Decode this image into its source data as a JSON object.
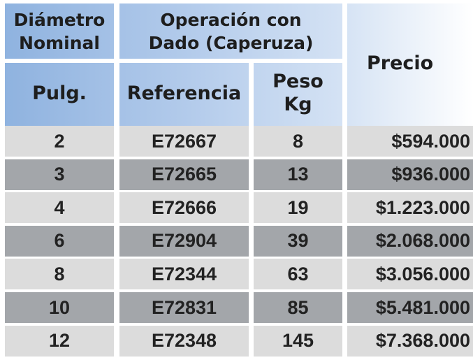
{
  "header": {
    "diametro": "Diámetro Nominal",
    "operacion": "Operación con Dado (Caperuza)",
    "precio": "Precio",
    "pulg": "Pulg.",
    "referencia": "Referencia",
    "peso": "Peso Kg"
  },
  "colors": {
    "header_blue": "#8eb2df",
    "row_light": "#dcdcdc",
    "row_dark": "#a3a6aa"
  },
  "rows": [
    {
      "pulg": "2",
      "referencia": "E72667",
      "peso": "8",
      "precio": "$594.000"
    },
    {
      "pulg": "3",
      "referencia": "E72665",
      "peso": "13",
      "precio": "$936.000"
    },
    {
      "pulg": "4",
      "referencia": "E72666",
      "peso": "19",
      "precio": "$1.223.000"
    },
    {
      "pulg": "6",
      "referencia": "E72904",
      "peso": "39",
      "precio": "$2.068.000"
    },
    {
      "pulg": "8",
      "referencia": "E72344",
      "peso": "63",
      "precio": "$3.056.000"
    },
    {
      "pulg": "10",
      "referencia": "E72831",
      "peso": "85",
      "precio": "$5.481.000"
    },
    {
      "pulg": "12",
      "referencia": "E72348",
      "peso": "145",
      "precio": "$7.368.000"
    }
  ]
}
